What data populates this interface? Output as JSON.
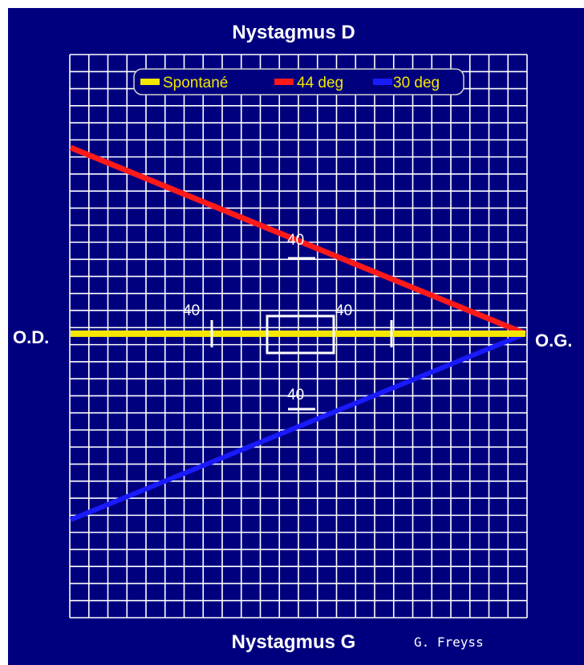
{
  "chart_data": {
    "type": "line",
    "title": "Nystagmus D",
    "bottom_title": "Nystagmus G",
    "left_label": "O.D.",
    "right_label": "O.G.",
    "credit": "G. Freyss",
    "scale_labels": [
      "40",
      "40",
      "40",
      "40"
    ],
    "grid": true,
    "legend_position": "top",
    "series": [
      {
        "name": "Spontané",
        "color": "#f4e600",
        "line": [
          [
            -1,
            0
          ],
          [
            1,
            0
          ]
        ]
      },
      {
        "name": "44 deg",
        "color": "#ff1a1a",
        "line": [
          [
            -1,
            1
          ],
          [
            1,
            0
          ]
        ]
      },
      {
        "name": "30 deg",
        "color": "#1a1aff",
        "line": [
          [
            -1,
            -1
          ],
          [
            1,
            0
          ]
        ]
      }
    ]
  },
  "colors": {
    "background": "#00007f",
    "grid": "#ffffff",
    "axis": "#ffffff"
  }
}
